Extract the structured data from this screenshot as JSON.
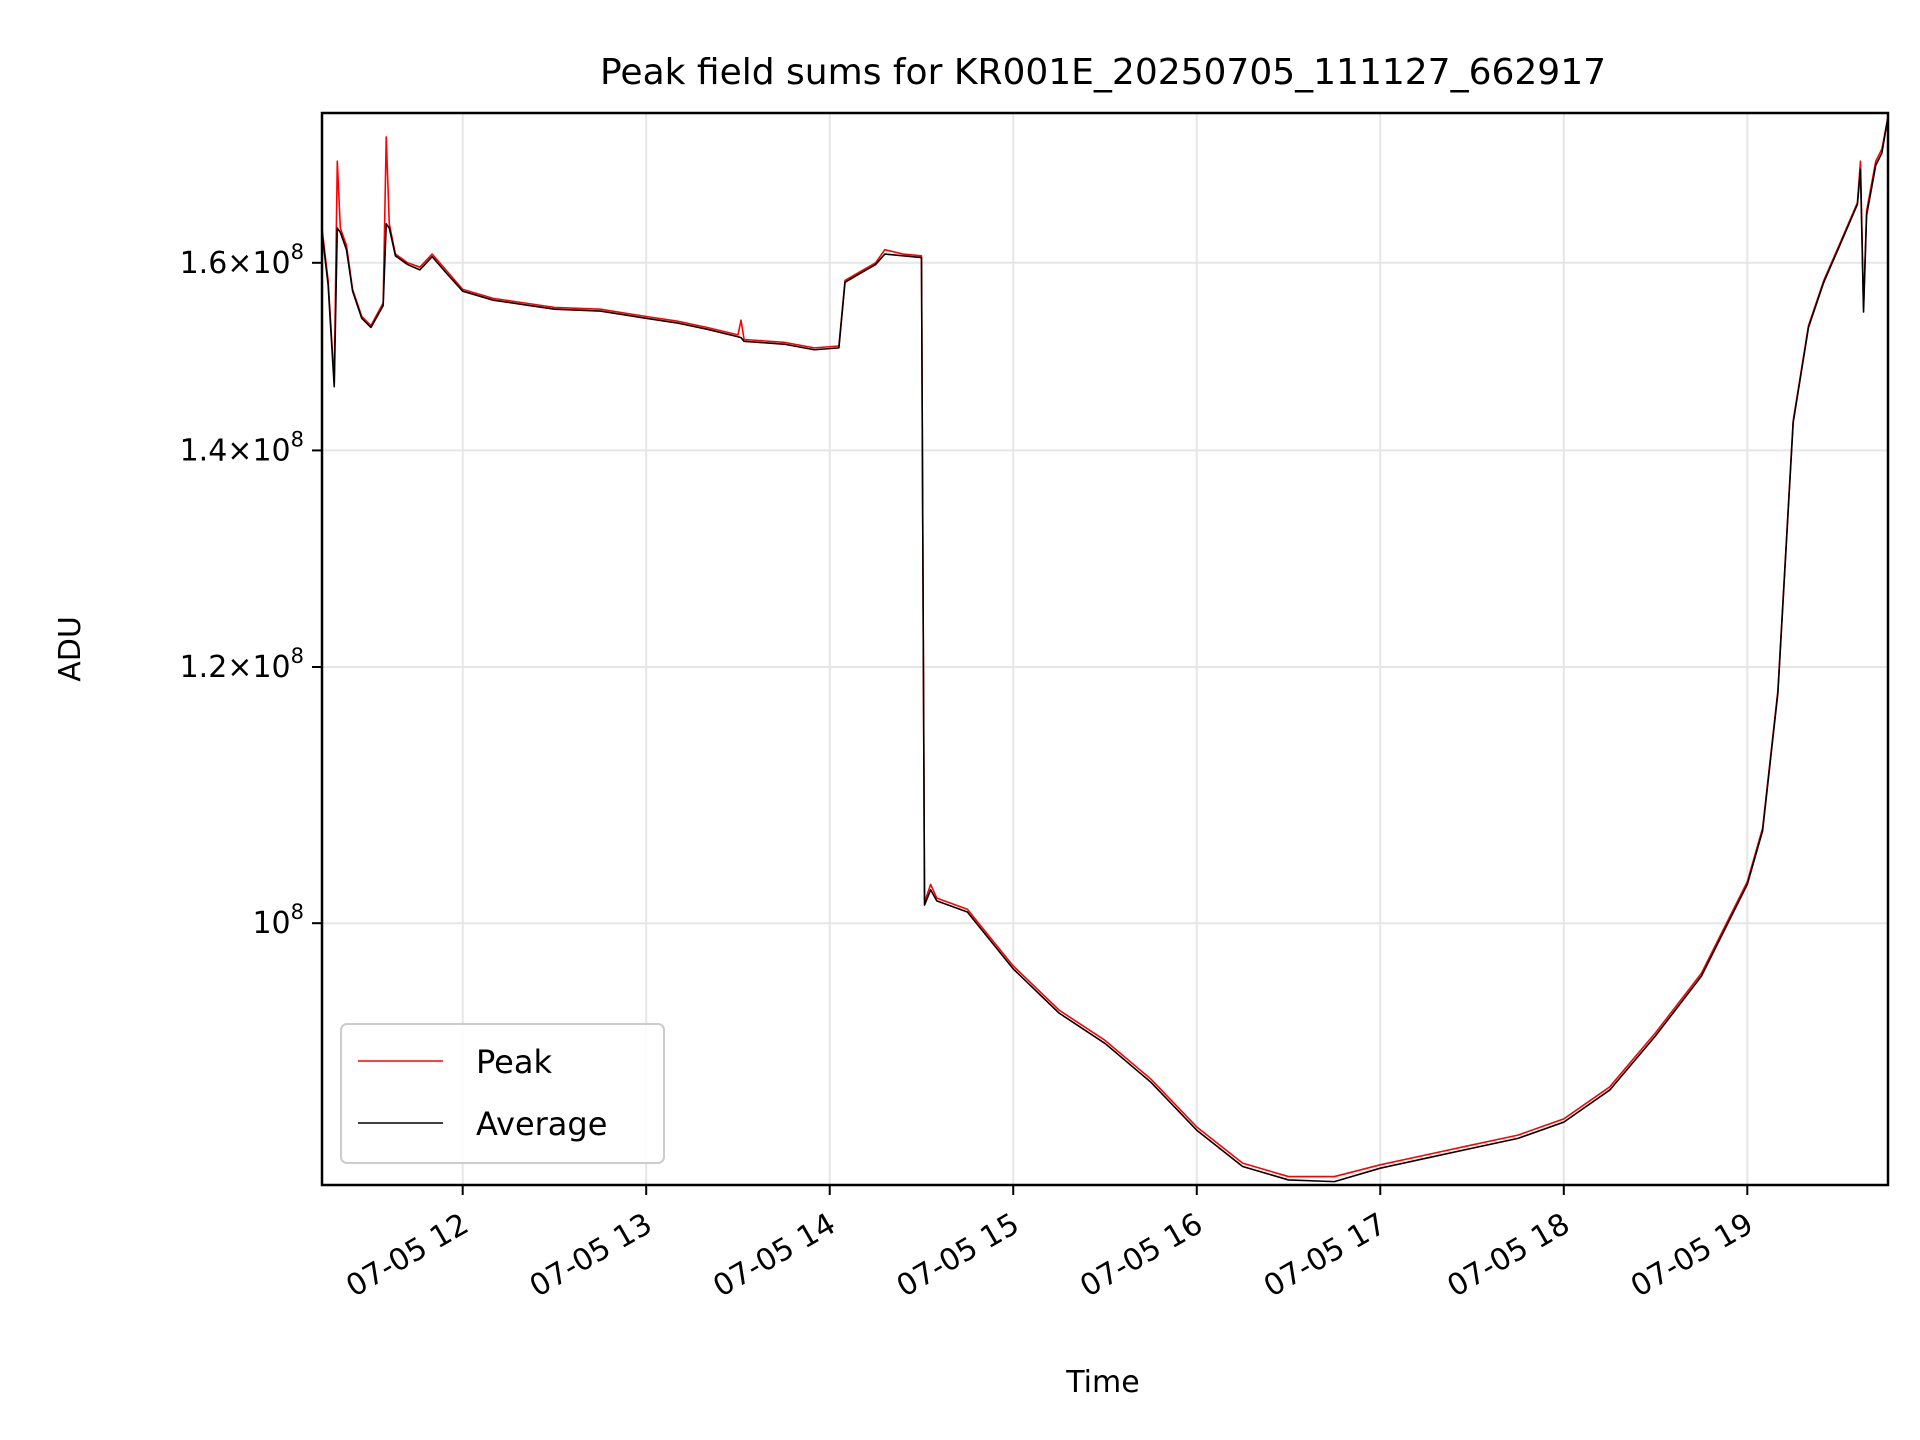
{
  "chart_data": {
    "type": "line",
    "title": "Peak field sums for KR001E_20250705_111127_662917",
    "xlabel": "Time",
    "ylabel": "ADU",
    "x_axis_kind": "date",
    "xlim": [
      "2025-07-05 11:14",
      "2025-07-05 19:46"
    ],
    "x_ticks": [
      {
        "value": "2025-07-05 12:00",
        "label": "07-05 12"
      },
      {
        "value": "2025-07-05 13:00",
        "label": "07-05 13"
      },
      {
        "value": "2025-07-05 14:00",
        "label": "07-05 14"
      },
      {
        "value": "2025-07-05 15:00",
        "label": "07-05 15"
      },
      {
        "value": "2025-07-05 16:00",
        "label": "07-05 16"
      },
      {
        "value": "2025-07-05 17:00",
        "label": "07-05 17"
      },
      {
        "value": "2025-07-05 18:00",
        "label": "07-05 18"
      },
      {
        "value": "2025-07-05 19:00",
        "label": "07-05 19"
      }
    ],
    "y_scale": "log",
    "ylim": [
      83000000,
      178000000
    ],
    "y_ticks": [
      {
        "value": 100000000,
        "mantissa": "",
        "exponent": "8"
      },
      {
        "value": 120000000,
        "mantissa": "1.2",
        "exponent": "8"
      },
      {
        "value": 140000000,
        "mantissa": "1.4",
        "exponent": "8"
      },
      {
        "value": 160000000,
        "mantissa": "1.6",
        "exponent": "8"
      }
    ],
    "grid": true,
    "legend_position": "lower-left",
    "series": [
      {
        "name": "Peak",
        "color": "#ff0000",
        "points": [
          [
            "2025-07-05 11:14",
            164000000
          ],
          [
            "2025-07-05 11:16",
            158000000
          ],
          [
            "2025-07-05 11:18",
            147000000
          ],
          [
            "2025-07-05 11:19",
            172000000
          ],
          [
            "2025-07-05 11:20",
            164000000
          ],
          [
            "2025-07-05 11:22",
            162000000
          ],
          [
            "2025-07-05 11:24",
            157000000
          ],
          [
            "2025-07-05 11:27",
            154000000
          ],
          [
            "2025-07-05 11:30",
            153000000
          ],
          [
            "2025-07-05 11:34",
            155500000
          ],
          [
            "2025-07-05 11:35",
            175000000
          ],
          [
            "2025-07-05 11:36",
            164500000
          ],
          [
            "2025-07-05 11:38",
            161000000
          ],
          [
            "2025-07-05 11:42",
            160000000
          ],
          [
            "2025-07-05 11:46",
            159500000
          ],
          [
            "2025-07-05 11:50",
            161000000
          ],
          [
            "2025-07-05 11:55",
            159000000
          ],
          [
            "2025-07-05 12:00",
            157000000
          ],
          [
            "2025-07-05 12:10",
            156000000
          ],
          [
            "2025-07-05 12:20",
            155500000
          ],
          [
            "2025-07-05 12:30",
            155000000
          ],
          [
            "2025-07-05 12:45",
            154800000
          ],
          [
            "2025-07-05 13:00",
            154000000
          ],
          [
            "2025-07-05 13:10",
            153500000
          ],
          [
            "2025-07-05 13:20",
            152800000
          ],
          [
            "2025-07-05 13:30",
            152000000
          ],
          [
            "2025-07-05 13:31",
            153600000
          ],
          [
            "2025-07-05 13:32",
            151500000
          ],
          [
            "2025-07-05 13:45",
            151200000
          ],
          [
            "2025-07-05 13:55",
            150600000
          ],
          [
            "2025-07-05 14:03",
            150800000
          ],
          [
            "2025-07-05 14:05",
            158000000
          ],
          [
            "2025-07-05 14:10",
            159000000
          ],
          [
            "2025-07-05 14:15",
            160000000
          ],
          [
            "2025-07-05 14:18",
            161500000
          ],
          [
            "2025-07-05 14:24",
            161000000
          ],
          [
            "2025-07-05 14:30",
            160800000
          ],
          [
            "2025-07-05 14:31",
            101500000
          ],
          [
            "2025-07-05 14:33",
            102800000
          ],
          [
            "2025-07-05 14:35",
            101800000
          ],
          [
            "2025-07-05 14:45",
            101000000
          ],
          [
            "2025-07-05 15:00",
            97000000
          ],
          [
            "2025-07-05 15:15",
            94000000
          ],
          [
            "2025-07-05 15:30",
            92000000
          ],
          [
            "2025-07-05 15:45",
            89500000
          ],
          [
            "2025-07-05 16:00",
            86500000
          ],
          [
            "2025-07-05 16:15",
            84300000
          ],
          [
            "2025-07-05 16:30",
            83500000
          ],
          [
            "2025-07-05 16:45",
            83500000
          ],
          [
            "2025-07-05 17:00",
            84200000
          ],
          [
            "2025-07-05 17:15",
            84800000
          ],
          [
            "2025-07-05 17:30",
            85400000
          ],
          [
            "2025-07-05 17:45",
            86000000
          ],
          [
            "2025-07-05 18:00",
            87000000
          ],
          [
            "2025-07-05 18:15",
            89000000
          ],
          [
            "2025-07-05 18:30",
            92500000
          ],
          [
            "2025-07-05 18:45",
            96500000
          ],
          [
            "2025-07-05 19:00",
            103000000
          ],
          [
            "2025-07-05 19:05",
            107000000
          ],
          [
            "2025-07-05 19:10",
            118000000
          ],
          [
            "2025-07-05 19:15",
            143000000
          ],
          [
            "2025-07-05 19:20",
            153000000
          ],
          [
            "2025-07-05 19:25",
            158000000
          ],
          [
            "2025-07-05 19:30",
            162000000
          ],
          [
            "2025-07-05 19:36",
            167000000
          ],
          [
            "2025-07-05 19:37",
            172000000
          ],
          [
            "2025-07-05 19:38",
            155000000
          ],
          [
            "2025-07-05 19:39",
            166000000
          ],
          [
            "2025-07-05 19:42",
            172000000
          ],
          [
            "2025-07-05 19:44",
            173500000
          ],
          [
            "2025-07-05 19:46",
            177500000
          ]
        ]
      },
      {
        "name": "Average",
        "color": "#000000",
        "points": [
          [
            "2025-07-05 11:14",
            163500000
          ],
          [
            "2025-07-05 11:16",
            157500000
          ],
          [
            "2025-07-05 11:18",
            146500000
          ],
          [
            "2025-07-05 11:19",
            164000000
          ],
          [
            "2025-07-05 11:20",
            163500000
          ],
          [
            "2025-07-05 11:22",
            161500000
          ],
          [
            "2025-07-05 11:24",
            156800000
          ],
          [
            "2025-07-05 11:27",
            153800000
          ],
          [
            "2025-07-05 11:30",
            152800000
          ],
          [
            "2025-07-05 11:34",
            155200000
          ],
          [
            "2025-07-05 11:35",
            164500000
          ],
          [
            "2025-07-05 11:36",
            164000000
          ],
          [
            "2025-07-05 11:38",
            160800000
          ],
          [
            "2025-07-05 11:42",
            159800000
          ],
          [
            "2025-07-05 11:46",
            159200000
          ],
          [
            "2025-07-05 11:50",
            160700000
          ],
          [
            "2025-07-05 11:55",
            158700000
          ],
          [
            "2025-07-05 12:00",
            156800000
          ],
          [
            "2025-07-05 12:10",
            155800000
          ],
          [
            "2025-07-05 12:20",
            155300000
          ],
          [
            "2025-07-05 12:30",
            154800000
          ],
          [
            "2025-07-05 12:45",
            154600000
          ],
          [
            "2025-07-05 13:00",
            153800000
          ],
          [
            "2025-07-05 13:10",
            153300000
          ],
          [
            "2025-07-05 13:20",
            152600000
          ],
          [
            "2025-07-05 13:30",
            151800000
          ],
          [
            "2025-07-05 13:31",
            151700000
          ],
          [
            "2025-07-05 13:32",
            151300000
          ],
          [
            "2025-07-05 13:45",
            151000000
          ],
          [
            "2025-07-05 13:55",
            150400000
          ],
          [
            "2025-07-05 14:03",
            150600000
          ],
          [
            "2025-07-05 14:05",
            157800000
          ],
          [
            "2025-07-05 14:10",
            158800000
          ],
          [
            "2025-07-05 14:15",
            159800000
          ],
          [
            "2025-07-05 14:18",
            161000000
          ],
          [
            "2025-07-05 14:24",
            160800000
          ],
          [
            "2025-07-05 14:30",
            160600000
          ],
          [
            "2025-07-05 14:31",
            101300000
          ],
          [
            "2025-07-05 14:33",
            102400000
          ],
          [
            "2025-07-05 14:35",
            101600000
          ],
          [
            "2025-07-05 14:45",
            100800000
          ],
          [
            "2025-07-05 15:00",
            96800000
          ],
          [
            "2025-07-05 15:15",
            93800000
          ],
          [
            "2025-07-05 15:30",
            91800000
          ],
          [
            "2025-07-05 15:45",
            89300000
          ],
          [
            "2025-07-05 16:00",
            86300000
          ],
          [
            "2025-07-05 16:15",
            84100000
          ],
          [
            "2025-07-05 16:30",
            83300000
          ],
          [
            "2025-07-05 16:45",
            83200000
          ],
          [
            "2025-07-05 17:00",
            84000000
          ],
          [
            "2025-07-05 17:15",
            84600000
          ],
          [
            "2025-07-05 17:30",
            85200000
          ],
          [
            "2025-07-05 17:45",
            85800000
          ],
          [
            "2025-07-05 18:00",
            86800000
          ],
          [
            "2025-07-05 18:15",
            88800000
          ],
          [
            "2025-07-05 18:30",
            92300000
          ],
          [
            "2025-07-05 18:45",
            96300000
          ],
          [
            "2025-07-05 19:00",
            102800000
          ],
          [
            "2025-07-05 19:05",
            106800000
          ],
          [
            "2025-07-05 19:10",
            117800000
          ],
          [
            "2025-07-05 19:15",
            142800000
          ],
          [
            "2025-07-05 19:20",
            152800000
          ],
          [
            "2025-07-05 19:25",
            157800000
          ],
          [
            "2025-07-05 19:30",
            161800000
          ],
          [
            "2025-07-05 19:36",
            166800000
          ],
          [
            "2025-07-05 19:37",
            171000000
          ],
          [
            "2025-07-05 19:38",
            154500000
          ],
          [
            "2025-07-05 19:39",
            165500000
          ],
          [
            "2025-07-05 19:42",
            171500000
          ],
          [
            "2025-07-05 19:44",
            173000000
          ],
          [
            "2025-07-05 19:46",
            177500000
          ]
        ]
      }
    ]
  }
}
